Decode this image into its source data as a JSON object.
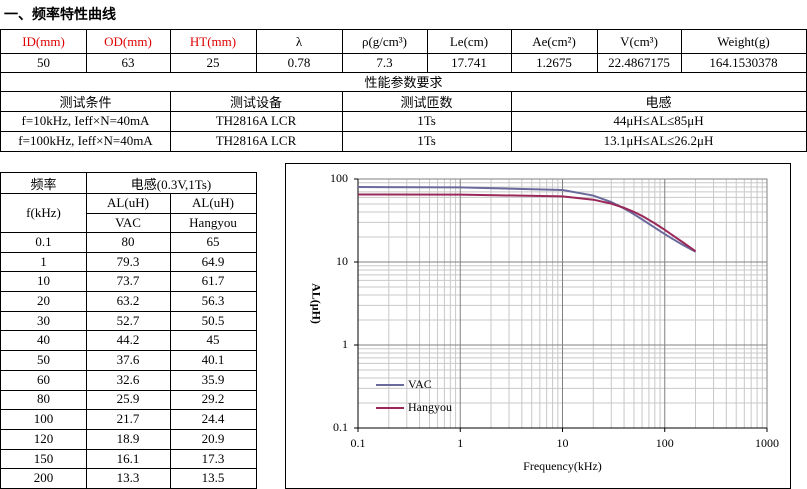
{
  "title": "一、频率特性曲线",
  "core_table": {
    "headers": [
      "ID(mm)",
      "OD(mm)",
      "HT(mm)",
      "λ",
      "ρ(g/cm³)",
      "Le(cm)",
      "Ae(cm²)",
      "V(cm³)",
      "Weight(g)"
    ],
    "values": [
      "50",
      "63",
      "25",
      "0.78",
      "7.3",
      "17.741",
      "1.2675",
      "22.4867175",
      "164.1530378"
    ]
  },
  "requirements": {
    "title": "性能参数要求",
    "headers": [
      "测试条件",
      "测试设备",
      "测试匝数",
      "电感"
    ],
    "rows": [
      [
        "f=10kHz, Ieff×N=40mA",
        "TH2816A  LCR",
        "1Ts",
        "44μH≤AL≤85μH"
      ],
      [
        "f=100kHz, Ieff×N=40mA",
        "TH2816A  LCR",
        "1Ts",
        "13.1μH≤AL≤26.2μH"
      ]
    ]
  },
  "inductance_table": {
    "freq_header": "频率",
    "inductance_header": "电感(0.3V,1Ts)",
    "freq_unit": "f(kHz)",
    "col_headers": [
      "AL(uH)",
      "AL(uH)"
    ]
  },
  "chart_data": {
    "type": "line",
    "x": [
      0.1,
      1,
      10,
      20,
      30,
      40,
      50,
      60,
      80,
      100,
      120,
      150,
      200
    ],
    "series": [
      {
        "name": "VAC",
        "color": "#6a6a9c",
        "values": [
          80,
          79.3,
          73.7,
          63.2,
          52.7,
          44.2,
          37.6,
          32.6,
          25.9,
          21.7,
          18.9,
          16.1,
          13.3
        ]
      },
      {
        "name": "Hangyou",
        "color": "#9a2858",
        "values": [
          65,
          64.9,
          61.7,
          56.3,
          50.5,
          45,
          40.1,
          35.9,
          29.2,
          24.4,
          20.9,
          17.3,
          13.5
        ]
      }
    ],
    "xlabel": "Frequency(kHz)",
    "ylabel": "AL(μH)",
    "xlim": [
      0.1,
      1000
    ],
    "ylim": [
      0.1,
      100
    ],
    "xticks": [
      0.1,
      1,
      10,
      100,
      1000
    ],
    "yticks": [
      0.1,
      1,
      10,
      100
    ],
    "xscale": "log",
    "yscale": "log",
    "grid": true,
    "legend": "lower left"
  }
}
